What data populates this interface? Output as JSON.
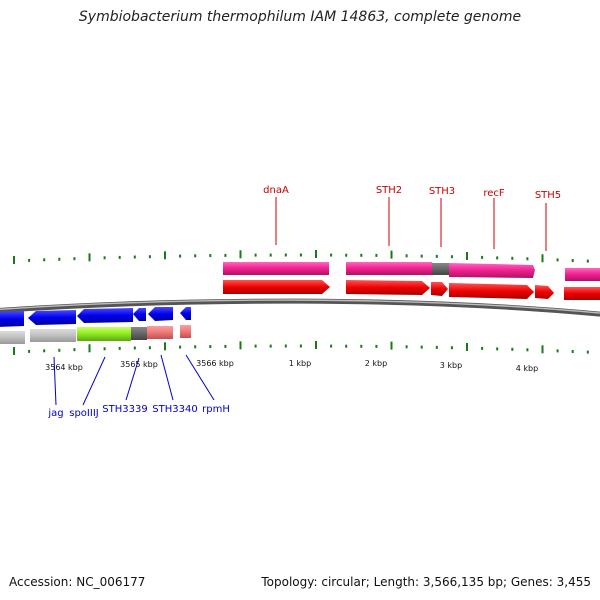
{
  "title": "Symbiobacterium thermophilum IAM 14863, complete genome",
  "footer": {
    "accession": "Accession: NC_006177",
    "topology": "Topology: circular; Length: 3,566,135 bp; Genes: 3,455"
  },
  "scale_labels": [
    "3564 kbp",
    "3565 kbp",
    "3566 kbp",
    "1 kbp",
    "2 kbp",
    "3 kbp",
    "4 kbp"
  ],
  "top_genes": [
    "dnaA",
    "STH2",
    "STH3",
    "recF",
    "STH5"
  ],
  "bottom_genes": [
    "jag",
    "spoIIIJ",
    "STH3339",
    "STH3340",
    "rpmH"
  ],
  "colors": {
    "forward_gene": "#ff0000",
    "forward_cds": "#ff1493",
    "reverse_gene": "#0000ff",
    "top_label": "#cc0000",
    "bottom_label": "#0000cc",
    "ticks": "#1a7a1a"
  }
}
